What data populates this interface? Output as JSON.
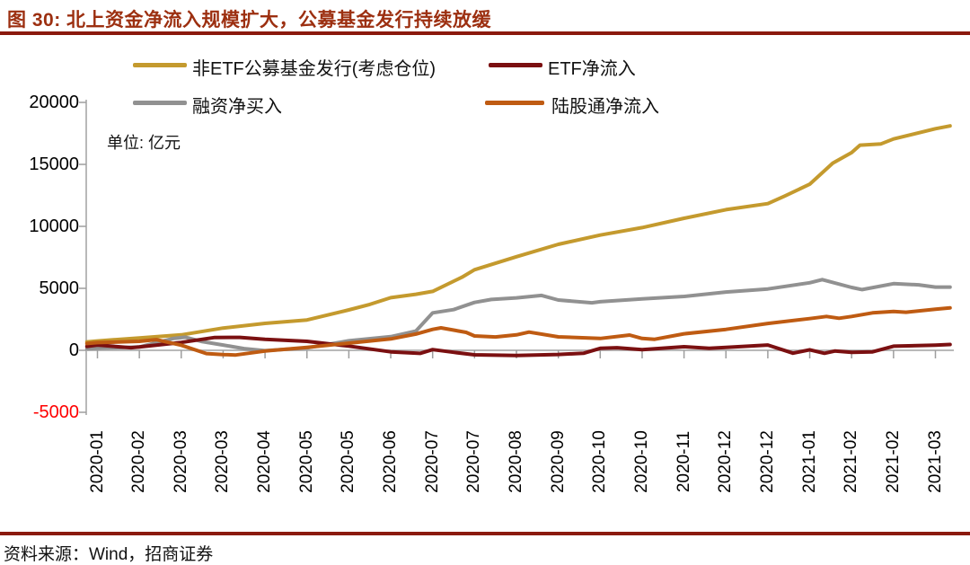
{
  "header": {
    "title": "图 30:  北上资金净流入规模扩大，公募基金发行持续放缓"
  },
  "source": {
    "text": "资料来源：Wind，招商证券"
  },
  "colors": {
    "title_text": "#9C2F10",
    "rule": "#8B1A0E",
    "axis": "#B9B9B9",
    "tick": "#9E9E9E",
    "negative_tick_label": "#FF0000"
  },
  "chart_data": {
    "type": "line",
    "title": "北上资金净流入规模扩大，公募基金发行持续放缓",
    "unit_label": "单位: 亿元",
    "ylabel": "",
    "xlabel": "",
    "ylim": [
      -5000,
      20000
    ],
    "grid": false,
    "legend_position": "top",
    "y_ticks": [
      {
        "value": 20000,
        "label": "20000",
        "color": "#000000"
      },
      {
        "value": 15000,
        "label": "15000",
        "color": "#000000"
      },
      {
        "value": 10000,
        "label": "10000",
        "color": "#000000"
      },
      {
        "value": 5000,
        "label": "5000",
        "color": "#000000"
      },
      {
        "value": 0,
        "label": "0",
        "color": "#000000"
      },
      {
        "value": -5000,
        "label": "-5000",
        "color": "#FF0000"
      }
    ],
    "x_tick_labels": [
      "2020-01",
      "2020-02",
      "2020-03",
      "2020-03",
      "2020-04",
      "2020-05",
      "2020-05",
      "2020-06",
      "2020-07",
      "2020-07",
      "2020-08",
      "2020-09",
      "2020-10",
      "2020-10",
      "2020-11",
      "2020-12",
      "2020-12",
      "2021-01",
      "2021-02",
      "2021-02",
      "2021-03"
    ],
    "legend": [
      {
        "name": "非ETF公募基金发行(考虑仓位)",
        "color": "#C49A2E"
      },
      {
        "name": "ETF净流入",
        "color": "#7B1011"
      },
      {
        "name": "融资净买入",
        "color": "#919191"
      },
      {
        "name": "陆股通净流入",
        "color": "#BF5B12"
      }
    ],
    "series": [
      {
        "name": "非ETF公募基金发行(考虑仓位)",
        "color": "#C49A2E",
        "points": [
          [
            -0.25,
            680
          ],
          [
            0,
            750
          ],
          [
            1,
            1000
          ],
          [
            2,
            1250
          ],
          [
            3,
            1800
          ],
          [
            4,
            2175
          ],
          [
            5,
            2450
          ],
          [
            6,
            3260
          ],
          [
            6.5,
            3700
          ],
          [
            7,
            4250
          ],
          [
            7.6,
            4520
          ],
          [
            8,
            4750
          ],
          [
            8.7,
            5900
          ],
          [
            9,
            6500
          ],
          [
            10,
            7550
          ],
          [
            11,
            8550
          ],
          [
            12,
            9300
          ],
          [
            13,
            9900
          ],
          [
            14,
            10650
          ],
          [
            15,
            11350
          ],
          [
            16,
            11830
          ],
          [
            16.4,
            12440
          ],
          [
            17,
            13400
          ],
          [
            17.55,
            15100
          ],
          [
            18,
            15950
          ],
          [
            18.2,
            16550
          ],
          [
            18.7,
            16650
          ],
          [
            19,
            17050
          ],
          [
            20,
            17875
          ],
          [
            20.35,
            18100
          ]
        ]
      },
      {
        "name": "融资净买入",
        "color": "#919191",
        "points": [
          [
            -0.25,
            120
          ],
          [
            0,
            160
          ],
          [
            1,
            265
          ],
          [
            1.8,
            950
          ],
          [
            2.1,
            1060
          ],
          [
            2.5,
            700
          ],
          [
            3,
            430
          ],
          [
            3.5,
            140
          ],
          [
            4,
            -30
          ],
          [
            4.5,
            80
          ],
          [
            5,
            195
          ],
          [
            6,
            770
          ],
          [
            7,
            1100
          ],
          [
            7.6,
            1550
          ],
          [
            8,
            3020
          ],
          [
            8.5,
            3280
          ],
          [
            9,
            3865
          ],
          [
            9.4,
            4100
          ],
          [
            10,
            4230
          ],
          [
            10.6,
            4430
          ],
          [
            11,
            4060
          ],
          [
            11.8,
            3830
          ],
          [
            12,
            3920
          ],
          [
            13,
            4150
          ],
          [
            14,
            4350
          ],
          [
            15,
            4700
          ],
          [
            16,
            4950
          ],
          [
            17,
            5450
          ],
          [
            17.3,
            5700
          ],
          [
            18,
            5070
          ],
          [
            18.25,
            4900
          ],
          [
            19,
            5380
          ],
          [
            19.6,
            5280
          ],
          [
            20,
            5100
          ],
          [
            20.35,
            5100
          ]
        ]
      },
      {
        "name": "ETF净流入",
        "color": "#7B1011",
        "points": [
          [
            -0.25,
            320
          ],
          [
            0,
            430
          ],
          [
            0.8,
            210
          ],
          [
            1,
            265
          ],
          [
            2,
            640
          ],
          [
            2.8,
            1035
          ],
          [
            3.4,
            1040
          ],
          [
            4,
            890
          ],
          [
            5,
            725
          ],
          [
            6,
            340
          ],
          [
            7,
            -120
          ],
          [
            7.7,
            -250
          ],
          [
            8,
            60
          ],
          [
            8.5,
            -160
          ],
          [
            9,
            -360
          ],
          [
            10,
            -410
          ],
          [
            11,
            -330
          ],
          [
            11.6,
            -240
          ],
          [
            12,
            160
          ],
          [
            12.4,
            210
          ],
          [
            13,
            50
          ],
          [
            14,
            290
          ],
          [
            14.6,
            170
          ],
          [
            15,
            240
          ],
          [
            16,
            430
          ],
          [
            16.6,
            -230
          ],
          [
            17,
            40
          ],
          [
            17.35,
            -240
          ],
          [
            17.6,
            -60
          ],
          [
            18,
            -170
          ],
          [
            18.5,
            -120
          ],
          [
            19,
            330
          ],
          [
            20,
            420
          ],
          [
            20.35,
            470
          ]
        ]
      },
      {
        "name": "陆股通净流入",
        "color": "#BF5B12",
        "points": [
          [
            -0.25,
            550
          ],
          [
            0,
            620
          ],
          [
            1,
            725
          ],
          [
            1.4,
            860
          ],
          [
            2,
            410
          ],
          [
            2.6,
            -260
          ],
          [
            3,
            -340
          ],
          [
            3.3,
            -380
          ],
          [
            4,
            -60
          ],
          [
            5,
            240
          ],
          [
            6,
            580
          ],
          [
            7,
            920
          ],
          [
            7.6,
            1310
          ],
          [
            8,
            1690
          ],
          [
            8.2,
            1810
          ],
          [
            8.8,
            1450
          ],
          [
            9,
            1160
          ],
          [
            9.5,
            1080
          ],
          [
            10,
            1250
          ],
          [
            10.3,
            1470
          ],
          [
            11,
            1090
          ],
          [
            12,
            960
          ],
          [
            12.7,
            1230
          ],
          [
            13,
            960
          ],
          [
            13.3,
            890
          ],
          [
            14,
            1330
          ],
          [
            15,
            1690
          ],
          [
            16,
            2170
          ],
          [
            17,
            2560
          ],
          [
            17.4,
            2730
          ],
          [
            17.7,
            2590
          ],
          [
            18,
            2730
          ],
          [
            18.5,
            3020
          ],
          [
            19,
            3140
          ],
          [
            19.3,
            3070
          ],
          [
            20,
            3310
          ],
          [
            20.35,
            3430
          ]
        ]
      }
    ]
  }
}
